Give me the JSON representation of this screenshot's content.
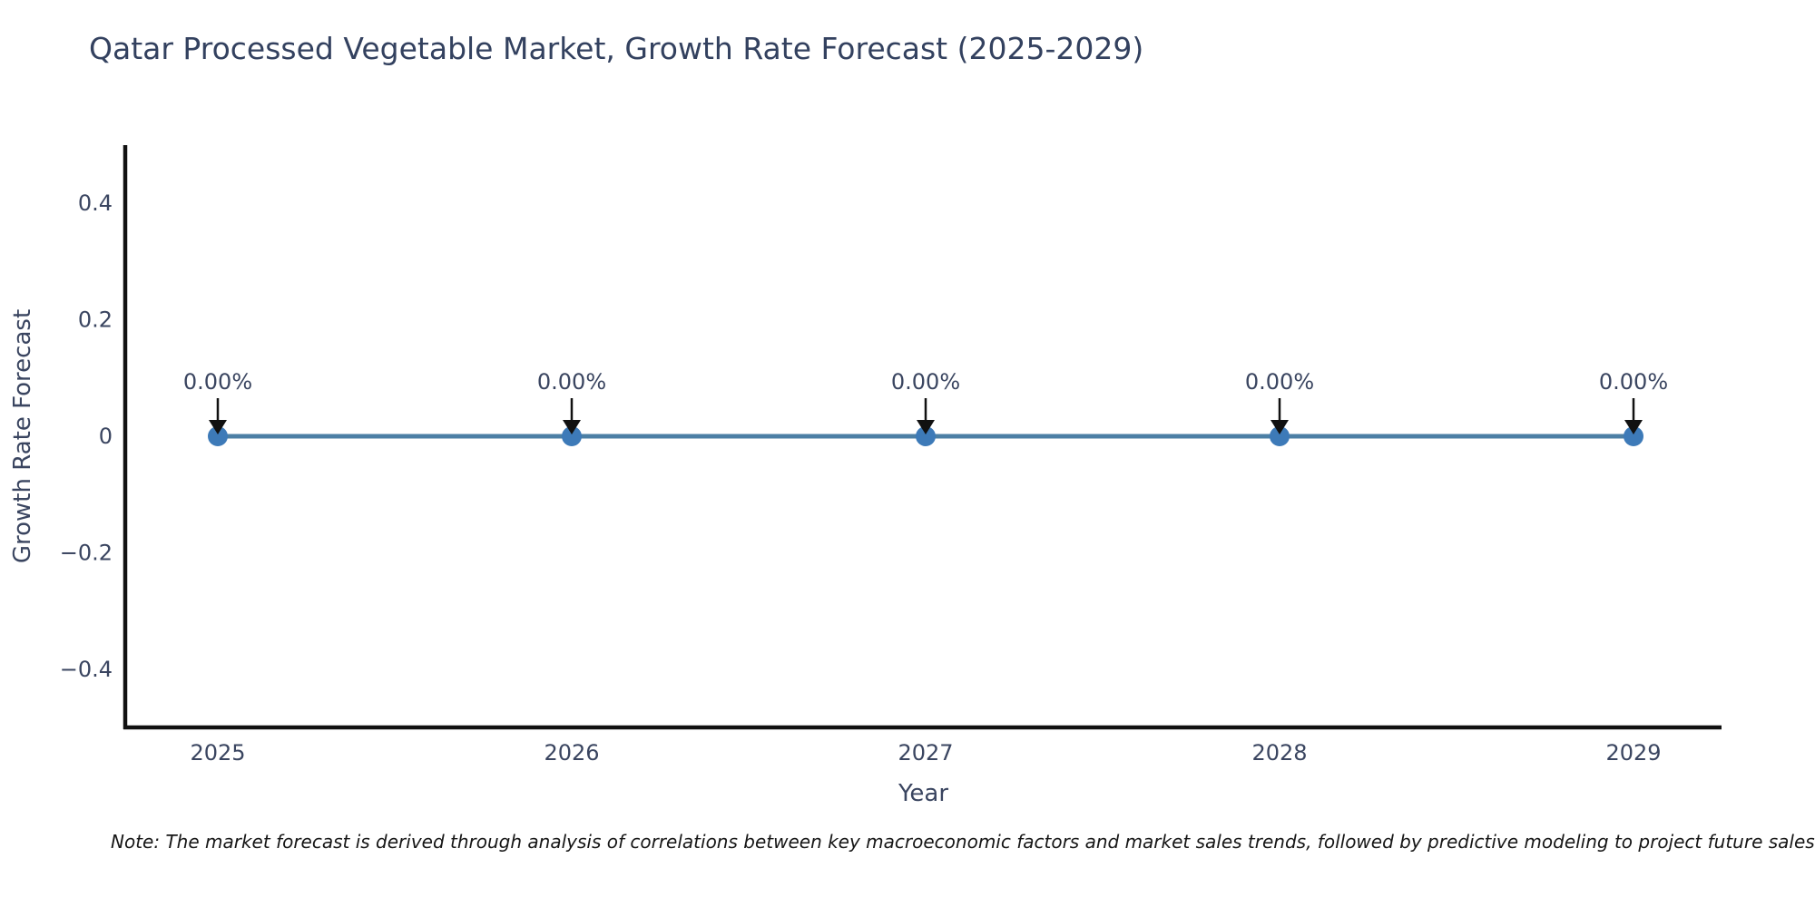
{
  "chart_data": {
    "type": "line",
    "title": "Qatar Processed Vegetable Market, Growth Rate Forecast (2025-2029)",
    "xlabel": "Year",
    "ylabel": "Growth Rate Forecast",
    "categories": [
      "2025",
      "2026",
      "2027",
      "2028",
      "2029"
    ],
    "series": [
      {
        "name": "Growth Rate Forecast",
        "values": [
          0,
          0,
          0,
          0,
          0
        ]
      }
    ],
    "point_labels": [
      "0.00%",
      "0.00%",
      "0.00%",
      "0.00%",
      "0.00%"
    ],
    "ylim": [
      -0.5,
      0.5
    ],
    "yticks": [
      0.4,
      0.2,
      0,
      -0.2,
      -0.4
    ],
    "ytick_labels": [
      "0.4",
      "0.2",
      "0",
      "−0.2",
      "−0.4"
    ],
    "grid": false,
    "legend": "none",
    "annotation_style": "black-down-arrow-to-point"
  },
  "note": {
    "text": "Note: The market forecast is derived through analysis of correlations between key macroeconomic factors and market sales trends, followed by predictive modeling to project future sales."
  },
  "colors": {
    "background": "#ffffff",
    "title_text": "#33415f",
    "axis_text": "#3a4560",
    "spine": "#111111",
    "line": "#4c7fa5",
    "marker": "#3d7ab8",
    "arrow": "#111111",
    "note_text": "#161616"
  }
}
